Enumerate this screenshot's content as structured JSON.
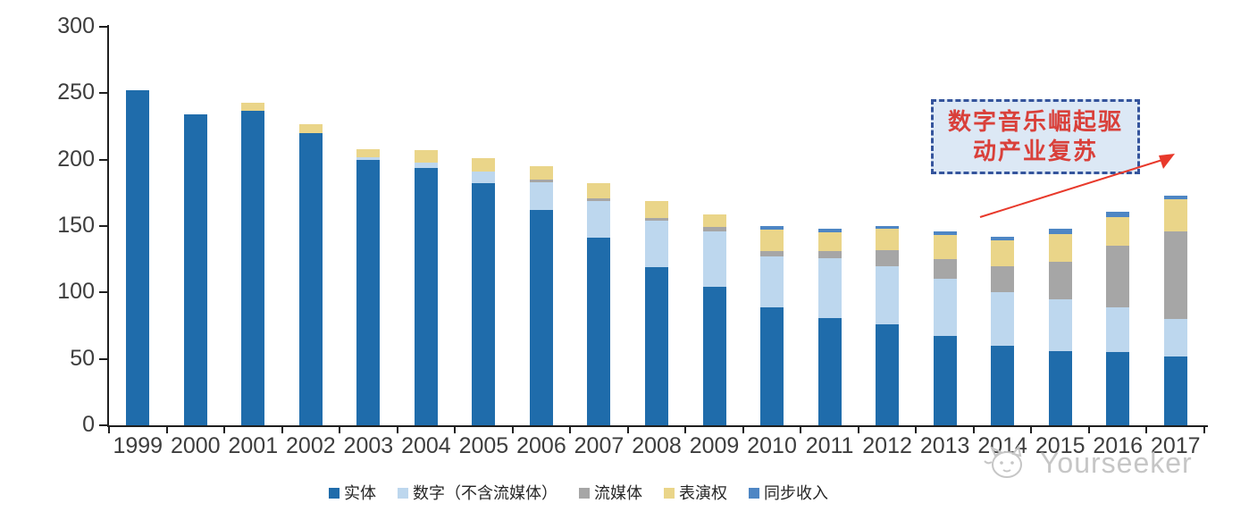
{
  "chart_data": {
    "type": "bar",
    "variant": "stacked",
    "title": "",
    "xlabel": "",
    "ylabel": "",
    "categories": [
      "1999",
      "2000",
      "2001",
      "2002",
      "2003",
      "2004",
      "2005",
      "2006",
      "2007",
      "2008",
      "2009",
      "2010",
      "2011",
      "2012",
      "2013",
      "2014",
      "2015",
      "2016",
      "2017"
    ],
    "series": [
      {
        "name": "实体",
        "color": "#1f6cab",
        "values": [
          252,
          234,
          237,
          220,
          200,
          194,
          182,
          162,
          141,
          119,
          104,
          89,
          81,
          76,
          67,
          60,
          56,
          55,
          52
        ]
      },
      {
        "name": "数字（不含流媒体）",
        "color": "#bdd7ee",
        "values": [
          0,
          0,
          0,
          0,
          2,
          4,
          9,
          21,
          28,
          35,
          42,
          38,
          45,
          44,
          43,
          40,
          39,
          34,
          28
        ]
      },
      {
        "name": "流媒体",
        "color": "#a6a6a6",
        "values": [
          0,
          0,
          0,
          0,
          0,
          0,
          0,
          2,
          2,
          2,
          3,
          4,
          5,
          12,
          15,
          20,
          28,
          46,
          66
        ]
      },
      {
        "name": "表演权",
        "color": "#ead589",
        "values": [
          0,
          0,
          6,
          7,
          6,
          9,
          10,
          10,
          11,
          13,
          10,
          16,
          14,
          16,
          18,
          19,
          21,
          22,
          24
        ]
      },
      {
        "name": "同步收入",
        "color": "#4e86c4",
        "values": [
          0,
          0,
          0,
          0,
          0,
          0,
          0,
          0,
          0,
          0,
          0,
          3,
          3,
          2,
          3,
          3,
          4,
          4,
          3
        ]
      }
    ],
    "ylim": [
      0,
      300
    ],
    "yticks": [
      0,
      50,
      100,
      150,
      200,
      250,
      300
    ],
    "grid": false,
    "legend_position": "bottom"
  },
  "annotation": {
    "line1": "数字音乐崛起驱",
    "line2": "动产业复苏",
    "arrow_color": "#e8392b",
    "box_fill": "#dce8f5",
    "box_border": "#34549c",
    "text_color": "#d9403a"
  },
  "watermark": {
    "text": "Yourseeker"
  }
}
